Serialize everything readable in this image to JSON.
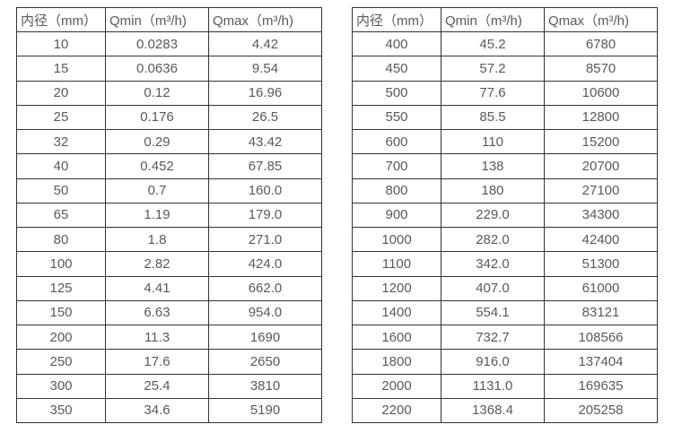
{
  "colors": {
    "background": "#ffffff",
    "table_border": "#333333",
    "text": "#595959"
  },
  "chart_data": [
    {
      "type": "table",
      "title": "",
      "headers": [
        "内径（mm）",
        "Qmin（m³/h)",
        "Qmax（m³/h)"
      ],
      "columns": [
        "diameter_mm",
        "qmin_m3_per_h",
        "qmax_m3_per_h"
      ],
      "rows": [
        [
          "10",
          "0.0283",
          "4.42"
        ],
        [
          "15",
          "0.0636",
          "9.54"
        ],
        [
          "20",
          "0.12",
          "16.96"
        ],
        [
          "25",
          "0.176",
          "26.5"
        ],
        [
          "32",
          "0.29",
          "43.42"
        ],
        [
          "40",
          "0.452",
          "67.85"
        ],
        [
          "50",
          "0.7",
          "160.0"
        ],
        [
          "65",
          "1.19",
          "179.0"
        ],
        [
          "80",
          "1.8",
          "271.0"
        ],
        [
          "100",
          "2.82",
          "424.0"
        ],
        [
          "125",
          "4.41",
          "662.0"
        ],
        [
          "150",
          "6.63",
          "954.0"
        ],
        [
          "200",
          "11.3",
          "1690"
        ],
        [
          "250",
          "17.6",
          "2650"
        ],
        [
          "300",
          "25.4",
          "3810"
        ],
        [
          "350",
          "34.6",
          "5190"
        ]
      ]
    },
    {
      "type": "table",
      "title": "",
      "headers": [
        "内径（mm）",
        "Qmin（m³/h)",
        "Qmax（m³/h)"
      ],
      "columns": [
        "diameter_mm",
        "qmin_m3_per_h",
        "qmax_m3_per_h"
      ],
      "rows": [
        [
          "400",
          "45.2",
          "6780"
        ],
        [
          "450",
          "57.2",
          "8570"
        ],
        [
          "500",
          "77.6",
          "10600"
        ],
        [
          "550",
          "85.5",
          "12800"
        ],
        [
          "600",
          "110",
          "15200"
        ],
        [
          "700",
          "138",
          "20700"
        ],
        [
          "800",
          "180",
          "27100"
        ],
        [
          "900",
          "229.0",
          "34300"
        ],
        [
          "1000",
          "282.0",
          "42400"
        ],
        [
          "1100",
          "342.0",
          "51300"
        ],
        [
          "1200",
          "407.0",
          "61000"
        ],
        [
          "1400",
          "554.1",
          "83121"
        ],
        [
          "1600",
          "732.7",
          "108566"
        ],
        [
          "1800",
          "916.0",
          "137404"
        ],
        [
          "2000",
          "1131.0",
          "169635"
        ],
        [
          "2200",
          "1368.4",
          "205258"
        ]
      ]
    }
  ]
}
